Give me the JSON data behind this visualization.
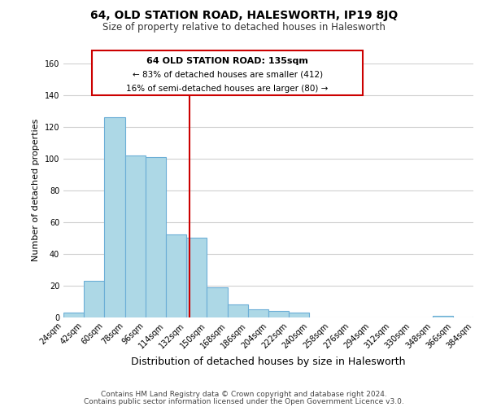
{
  "title": "64, OLD STATION ROAD, HALESWORTH, IP19 8JQ",
  "subtitle": "Size of property relative to detached houses in Halesworth",
  "xlabel": "Distribution of detached houses by size in Halesworth",
  "ylabel": "Number of detached properties",
  "bin_edges": [
    24,
    42,
    60,
    78,
    96,
    114,
    132,
    150,
    168,
    186,
    204,
    222,
    240,
    258,
    276,
    294,
    312,
    330,
    348,
    366,
    384
  ],
  "bar_heights": [
    3,
    23,
    126,
    102,
    101,
    52,
    50,
    19,
    8,
    5,
    4,
    3,
    0,
    0,
    0,
    0,
    0,
    0,
    1,
    0,
    1
  ],
  "bar_color": "#add8e6",
  "bar_edge_color": "#6baed6",
  "vline_x": 135,
  "vline_color": "#cc0000",
  "annotation_title": "64 OLD STATION ROAD: 135sqm",
  "annotation_line1": "← 83% of detached houses are smaller (412)",
  "annotation_line2": "16% of semi-detached houses are larger (80) →",
  "annotation_box_color": "#cc0000",
  "ylim": [
    0,
    160
  ],
  "yticks": [
    0,
    20,
    40,
    60,
    80,
    100,
    120,
    140,
    160
  ],
  "tick_labels": [
    "24sqm",
    "42sqm",
    "60sqm",
    "78sqm",
    "96sqm",
    "114sqm",
    "132sqm",
    "150sqm",
    "168sqm",
    "186sqm",
    "204sqm",
    "222sqm",
    "240sqm",
    "258sqm",
    "276sqm",
    "294sqm",
    "312sqm",
    "330sqm",
    "348sqm",
    "366sqm",
    "384sqm"
  ],
  "footnote1": "Contains HM Land Registry data © Crown copyright and database right 2024.",
  "footnote2": "Contains public sector information licensed under the Open Government Licence v3.0.",
  "background_color": "#ffffff",
  "grid_color": "#d0d0d0",
  "title_fontsize": 10,
  "subtitle_fontsize": 8.5,
  "ylabel_fontsize": 8,
  "xlabel_fontsize": 9,
  "tick_fontsize": 7,
  "footnote_fontsize": 6.5
}
